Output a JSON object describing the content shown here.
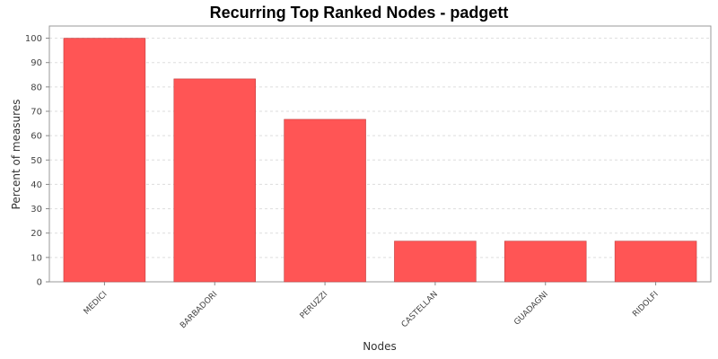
{
  "chart_data": {
    "type": "bar",
    "title": "Recurring Top Ranked Nodes - padgett",
    "xlabel": "Nodes",
    "ylabel": "Percent of measures",
    "categories": [
      "MEDICI",
      "BARBADORI",
      "PERUZZI",
      "CASTELLAN",
      "GUADAGNI",
      "RIDOLFI"
    ],
    "values": [
      100,
      83.3,
      66.7,
      16.7,
      16.7,
      16.7
    ],
    "ylim": [
      0,
      105
    ],
    "yticks": [
      0,
      10,
      20,
      30,
      40,
      50,
      60,
      70,
      80,
      90,
      100
    ],
    "grid": true,
    "legend": "none",
    "colors": {
      "bar": "#ff5555",
      "bar_stroke": "#c04040",
      "grid": "#dddddd",
      "plot_border": "#999999"
    }
  }
}
